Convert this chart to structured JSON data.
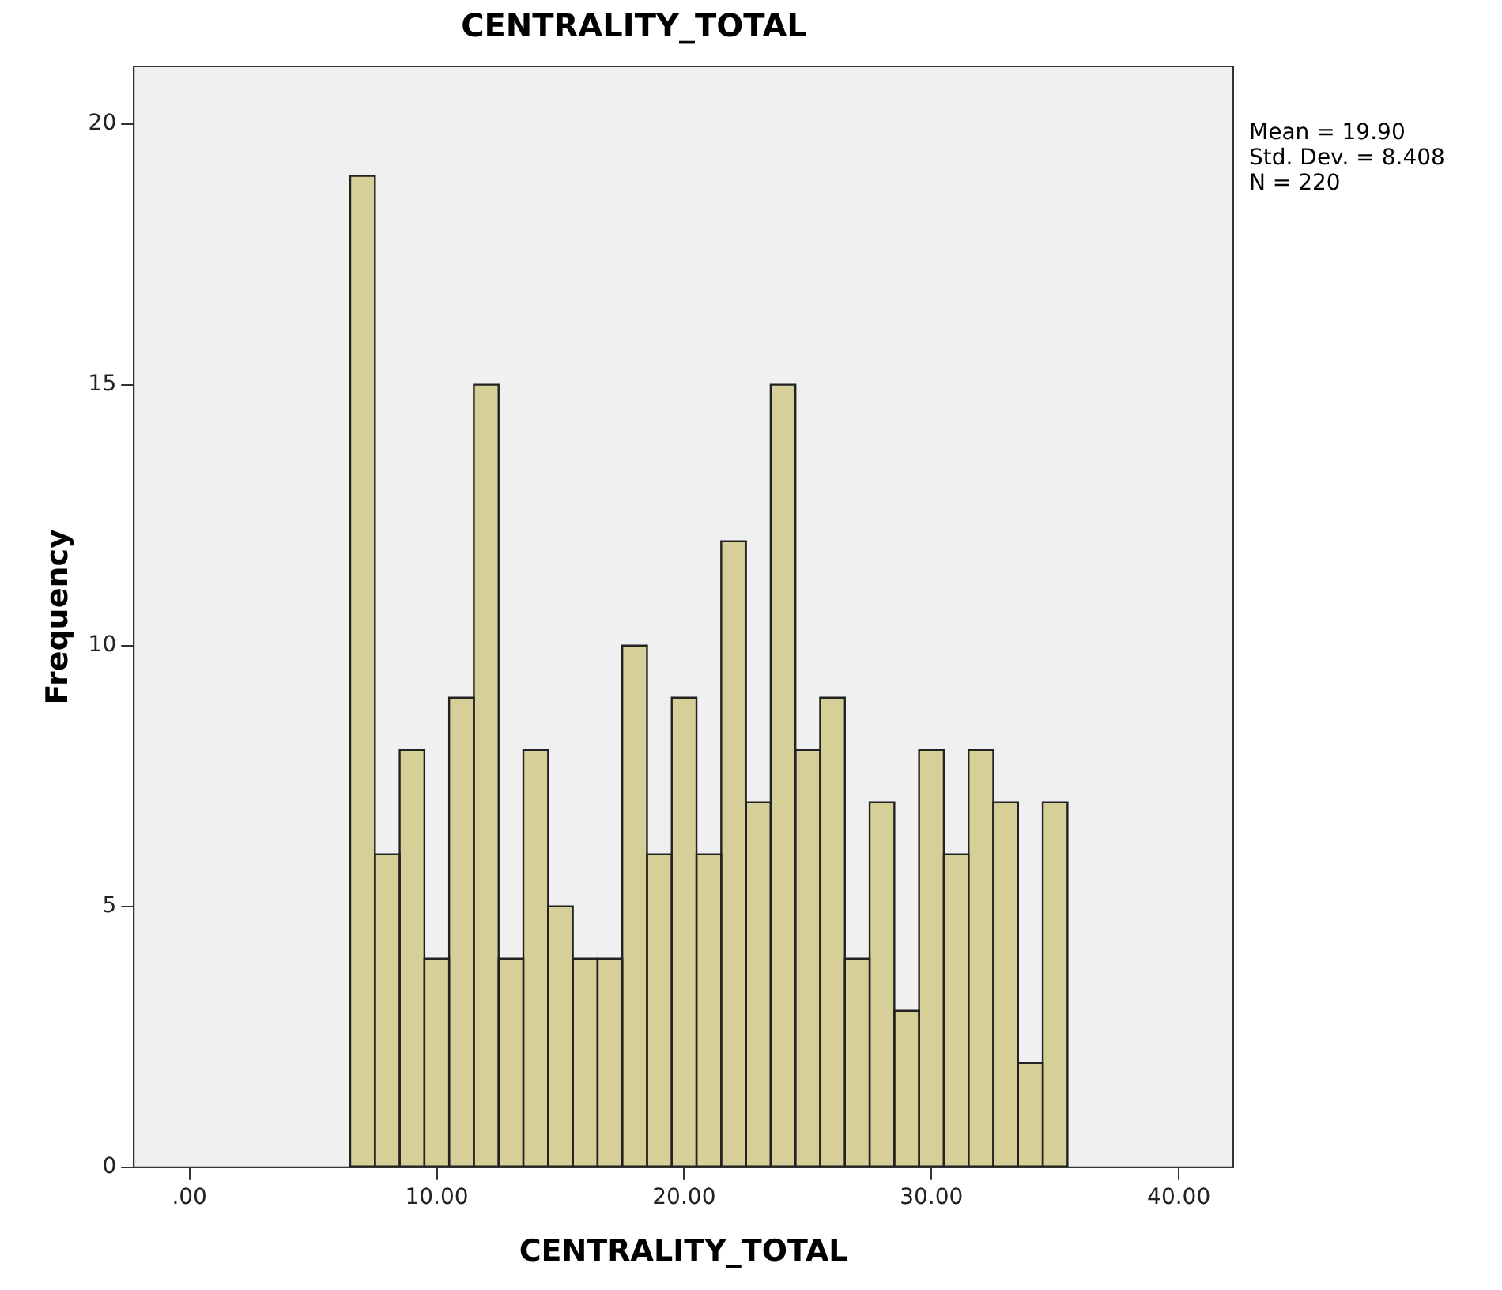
{
  "chart_data": {
    "type": "histogram",
    "title": "CENTRALITY_TOTAL",
    "xlabel": "CENTRALITY_TOTAL",
    "ylabel": "Frequency",
    "bins": [
      6.5,
      7.5,
      8.5,
      9.5,
      10.5,
      11.5,
      12.5,
      13.5,
      14.5,
      15.5,
      16.5,
      17.5,
      18.5,
      19.5,
      20.5,
      21.5,
      22.5,
      23.5,
      24.5,
      25.5,
      26.5,
      27.5,
      28.5,
      29.5,
      30.5,
      31.5,
      32.5,
      33.5,
      34.5,
      35.5
    ],
    "values": [
      19,
      6,
      8,
      4,
      9,
      15,
      4,
      8,
      5,
      4,
      4,
      10,
      6,
      9,
      6,
      12,
      7,
      15,
      8,
      9,
      4,
      7,
      3,
      8,
      6,
      8,
      7,
      2,
      7
    ],
    "color": "#d6cf98",
    "xlim": [
      -2.25,
      42.2
    ],
    "xticks": [
      {
        "value": 0,
        "label": ".00"
      },
      {
        "value": 10,
        "label": "10.00"
      },
      {
        "value": 20,
        "label": "20.00"
      },
      {
        "value": 30,
        "label": "30.00"
      },
      {
        "value": 40,
        "label": "40.00"
      }
    ],
    "ylim": [
      0,
      21.1
    ],
    "yticks": [
      0,
      5,
      10,
      15,
      20
    ],
    "grid": false,
    "legend": false,
    "annotations": [
      "Mean = 19.90",
      "Std. Dev. = 8.408",
      "N = 220"
    ]
  }
}
